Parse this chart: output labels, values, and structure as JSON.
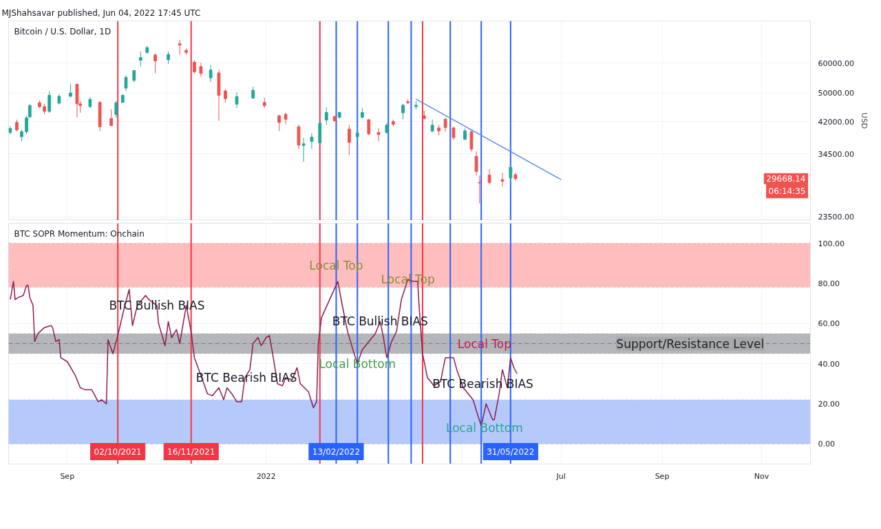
{
  "chart_data": [
    {
      "type": "candlestick",
      "subtitle": "MJShahsavar published, Jun 04, 2022 17:45 UTC",
      "title": "Bitcoin / U.S. Dollar, 1D",
      "ylabel": "USD",
      "log": true,
      "grid": true,
      "tick_labels": "y",
      "xlim": [
        "2021-07-27",
        "2022-12-01"
      ],
      "ylim": [
        23000,
        77500
      ],
      "xticks": [
        {
          "value": "2021-09-01",
          "label": null
        },
        {
          "value": "2021-11-01",
          "label": null
        },
        {
          "value": "2022-01-01",
          "label": null
        },
        {
          "value": "2022-03-01",
          "label": null
        },
        {
          "value": "2022-05-01",
          "label": null
        },
        {
          "value": "2022-07-01",
          "label": null
        },
        {
          "value": "2022-09-01",
          "label": null
        },
        {
          "value": "2022-11-01",
          "label": null
        }
      ],
      "yticks": [
        {
          "value": 23500,
          "label": "23500.00"
        },
        {
          "value": 34500,
          "label": "34500.00"
        },
        {
          "value": 42000,
          "label": "42000.00"
        },
        {
          "value": 50000,
          "label": "50000.00"
        },
        {
          "value": 60000,
          "label": "60000.00"
        }
      ],
      "x": [
        "2021-07-28",
        "2021-08-01",
        "2021-08-04",
        "2021-08-07",
        "2021-08-09",
        "2021-08-15",
        "2021-08-18",
        "2021-08-21",
        "2021-08-27",
        "2021-09-03",
        "2021-09-07",
        "2021-09-09",
        "2021-09-15",
        "2021-09-21",
        "2021-09-28",
        "2021-10-01",
        "2021-10-05",
        "2021-10-07",
        "2021-10-12",
        "2021-10-16",
        "2021-10-20",
        "2021-10-25",
        "2021-11-02",
        "2021-11-09",
        "2021-11-13",
        "2021-11-18",
        "2021-11-22",
        "2021-11-28",
        "2021-12-03",
        "2021-12-07",
        "2021-12-14",
        "2021-12-24",
        "2021-12-31",
        "2022-01-09",
        "2022-01-13",
        "2022-01-21",
        "2022-01-24",
        "2022-01-29",
        "2022-02-03",
        "2022-02-07",
        "2022-02-12",
        "2022-02-15",
        "2022-02-21",
        "2022-02-26",
        "2022-03-01",
        "2022-03-05",
        "2022-03-11",
        "2022-03-16",
        "2022-03-20",
        "2022-03-26",
        "2022-03-29",
        "2022-04-03",
        "2022-04-08",
        "2022-04-13",
        "2022-04-17",
        "2022-04-21",
        "2022-04-26",
        "2022-05-03",
        "2022-05-07",
        "2022-05-10",
        "2022-05-12",
        "2022-05-18",
        "2022-05-26",
        "2022-05-31",
        "2022-06-03"
      ],
      "ohlc": [
        [
          39300,
          40800,
          38800,
          40300
        ],
        [
          41800,
          42500,
          39600,
          39900
        ],
        [
          38300,
          39970,
          37240,
          39500
        ],
        [
          39500,
          43400,
          39000,
          43000
        ],
        [
          43200,
          46700,
          43000,
          46300
        ],
        [
          47100,
          47750,
          45600,
          46000
        ],
        [
          46000,
          46780,
          43970,
          44700
        ],
        [
          44700,
          50600,
          44300,
          49300
        ],
        [
          47000,
          49560,
          46590,
          49000
        ],
        [
          49000,
          52760,
          48700,
          50000
        ],
        [
          52700,
          52980,
          43060,
          46800
        ],
        [
          46800,
          47560,
          44330,
          46300
        ],
        [
          46000,
          48760,
          45640,
          48100
        ],
        [
          47200,
          47560,
          39640,
          40700
        ],
        [
          42800,
          45260,
          40800,
          41000
        ],
        [
          43800,
          47560,
          43060,
          47100
        ],
        [
          47200,
          49560,
          47170,
          49300
        ],
        [
          51500,
          55680,
          50610,
          55000
        ],
        [
          54000,
          57560,
          53400,
          57300
        ],
        [
          61000,
          64380,
          58770,
          62000
        ],
        [
          64000,
          66560,
          63590,
          65900
        ],
        [
          63000,
          63590,
          56380,
          60800
        ],
        [
          61200,
          64380,
          59750,
          63200
        ],
        [
          67500,
          69070,
          63060,
          66900
        ],
        [
          64800,
          65500,
          63060,
          64000
        ],
        [
          60300,
          61000,
          56380,
          56900
        ],
        [
          58700,
          60000,
          55220,
          56300
        ],
        [
          54800,
          59260,
          53420,
          57500
        ],
        [
          56500,
          57560,
          42200,
          49300
        ],
        [
          50600,
          51230,
          47170,
          48300
        ],
        [
          46700,
          50190,
          45640,
          48900
        ],
        [
          48500,
          51900,
          48150,
          50800
        ],
        [
          47200,
          48560,
          45640,
          46300
        ],
        [
          43500,
          43800,
          39640,
          41800
        ],
        [
          43900,
          44330,
          41300,
          42600
        ],
        [
          40700,
          41300,
          35570,
          36400
        ],
        [
          36300,
          38000,
          32880,
          36700
        ],
        [
          37200,
          39140,
          35570,
          38200
        ],
        [
          36900,
          41980,
          36470,
          41600
        ],
        [
          42400,
          45820,
          41140,
          44400
        ],
        [
          43300,
          43500,
          42000,
          42200
        ],
        [
          43100,
          44600,
          42800,
          44400
        ],
        [
          40100,
          41140,
          34270,
          37000
        ],
        [
          38300,
          39640,
          37080,
          39200
        ],
        [
          43100,
          45640,
          42900,
          44400
        ],
        [
          42500,
          42530,
          38640,
          39000
        ],
        [
          39300,
          40300,
          37240,
          38800
        ],
        [
          39300,
          41650,
          39000,
          41100
        ],
        [
          42000,
          42530,
          40800,
          41300
        ],
        [
          44300,
          46780,
          42530,
          46400
        ],
        [
          47400,
          48150,
          46780,
          47100
        ],
        [
          46000,
          47560,
          45260,
          46400
        ],
        [
          43500,
          44900,
          42530,
          42800
        ],
        [
          39600,
          42530,
          39480,
          41100
        ],
        [
          40400,
          41140,
          38640,
          39700
        ],
        [
          42600,
          43060,
          39480,
          40500
        ],
        [
          40400,
          40800,
          37550,
          38100
        ],
        [
          37700,
          40300,
          37550,
          39700
        ],
        [
          39500,
          39970,
          34990,
          35500
        ],
        [
          34000,
          34990,
          30260,
          31000
        ],
        [
          29000,
          30260,
          25520,
          28900
        ],
        [
          30300,
          31420,
          28660,
          29000
        ],
        [
          29500,
          30770,
          28300,
          29200
        ],
        [
          29800,
          32200,
          29280,
          31800
        ],
        [
          30400,
          30770,
          29280,
          29668.14
        ]
      ],
      "colors": [
        "#26a69a",
        "#ef5350",
        "#26a69a",
        "#26a69a",
        "#26a69a",
        "#ef5350",
        "#ef5350",
        "#26a69a",
        "#26a69a",
        "#26a69a",
        "#ef5350",
        "#ef5350",
        "#26a69a",
        "#ef5350",
        "#ef5350",
        "#26a69a",
        "#26a69a",
        "#26a69a",
        "#26a69a",
        "#26a69a",
        "#26a69a",
        "#ef5350",
        "#26a69a",
        "#ef5350",
        "#ef5350",
        "#ef5350",
        "#ef5350",
        "#26a69a",
        "#ef5350",
        "#ef5350",
        "#26a69a",
        "#26a69a",
        "#ef5350",
        "#ef5350",
        "#ef5350",
        "#ef5350",
        "#26a69a",
        "#26a69a",
        "#26a69a",
        "#26a69a",
        "#ef5350",
        "#26a69a",
        "#ef5350",
        "#26a69a",
        "#26a69a",
        "#ef5350",
        "#ef5350",
        "#26a69a",
        "#ef5350",
        "#26a69a",
        "#ef5350",
        "#26a69a",
        "#ef5350",
        "#26a69a",
        "#ef5350",
        "#ef5350",
        "#ef5350",
        "#26a69a",
        "#ef5350",
        "#ef5350",
        "#ef5350",
        "#ef5350",
        "#ef5350",
        "#26a69a",
        "#ef5350"
      ],
      "series": [
        {
          "type": "line",
          "color": "#5b8def",
          "x": [
            "2022-04-03",
            "2022-07-01"
          ],
          "values": [
            48150,
            29500
          ]
        }
      ],
      "ref_lines": [
        {
          "axis": "x",
          "value": "2021-10-02",
          "color": "#f23645"
        },
        {
          "axis": "x",
          "value": "2021-11-16",
          "color": "#f23645"
        },
        {
          "axis": "x",
          "value": "2022-02-03",
          "color": "#f23645"
        },
        {
          "axis": "x",
          "value": "2022-02-13",
          "color": "#2962ff"
        },
        {
          "axis": "x",
          "value": "2022-02-26",
          "color": "#2962ff"
        },
        {
          "axis": "x",
          "value": "2022-03-17",
          "color": "#2962ff"
        },
        {
          "axis": "x",
          "value": "2022-03-31",
          "color": "#2962ff"
        },
        {
          "axis": "x",
          "value": "2022-04-07",
          "color": "#f23645"
        },
        {
          "axis": "x",
          "value": "2022-04-24",
          "color": "#2962ff"
        },
        {
          "axis": "x",
          "value": "2022-05-13",
          "color": "#2962ff"
        },
        {
          "axis": "x",
          "value": "2022-05-31",
          "color": "#2962ff"
        }
      ],
      "annotations": [
        "29668.14",
        "06:14:35"
      ]
    },
    {
      "type": "line",
      "title": "BTC SOPR Momentum: Onchain",
      "color": "#8b1a4f",
      "grid": true,
      "xlim": [
        "2021-07-27",
        "2022-12-01"
      ],
      "ylim": [
        -10,
        110
      ],
      "xticks": [
        {
          "value": "2021-09-01",
          "label": "Sep"
        },
        {
          "value": "2021-11-01",
          "label": null
        },
        {
          "value": "2022-01-01",
          "label": "2022"
        },
        {
          "value": "2022-03-01",
          "label": null
        },
        {
          "value": "2022-05-01",
          "label": null
        },
        {
          "value": "2022-07-01",
          "label": "Jul"
        },
        {
          "value": "2022-09-01",
          "label": "Sep"
        },
        {
          "value": "2022-11-01",
          "label": "Nov"
        }
      ],
      "yticks": [
        {
          "value": 0,
          "label": "0.00"
        },
        {
          "value": 20,
          "label": "20.00"
        },
        {
          "value": 40,
          "label": "40.00"
        },
        {
          "value": 60,
          "label": "60.00"
        },
        {
          "value": 80,
          "label": "80.00"
        },
        {
          "value": 100,
          "label": "100.00"
        }
      ],
      "x": [
        "2021-07-28",
        "2021-07-30",
        "2021-07-31",
        "2021-08-02",
        "2021-08-05",
        "2021-08-07",
        "2021-08-08",
        "2021-08-09",
        "2021-08-11",
        "2021-08-12",
        "2021-08-14",
        "2021-08-18",
        "2021-08-22",
        "2021-08-23",
        "2021-08-25",
        "2021-08-27",
        "2021-08-28",
        "2021-09-01",
        "2021-09-06",
        "2021-09-09",
        "2021-09-12",
        "2021-09-16",
        "2021-09-20",
        "2021-09-22",
        "2021-09-25",
        "2021-09-26",
        "2021-09-29",
        "2021-10-02",
        "2021-10-06",
        "2021-10-09",
        "2021-10-11",
        "2021-10-14",
        "2021-10-19",
        "2021-10-21",
        "2021-10-26",
        "2021-10-27",
        "2021-10-31",
        "2021-11-02",
        "2021-11-04",
        "2021-11-07",
        "2021-11-09",
        "2021-11-13",
        "2021-11-16",
        "2021-11-18",
        "2021-11-23",
        "2021-11-26",
        "2021-11-29",
        "2021-12-03",
        "2021-12-06",
        "2021-12-08",
        "2021-12-11",
        "2021-12-14",
        "2021-12-17",
        "2021-12-19",
        "2021-12-22",
        "2021-12-24",
        "2021-12-27",
        "2021-12-29",
        "2022-01-01",
        "2022-01-03",
        "2022-01-05",
        "2022-01-08",
        "2022-01-11",
        "2022-01-13",
        "2022-01-17",
        "2022-01-20",
        "2022-01-22",
        "2022-01-27",
        "2022-01-30",
        "2022-02-01",
        "2022-02-02",
        "2022-02-04",
        "2022-02-09",
        "2022-02-14",
        "2022-02-17",
        "2022-02-20",
        "2022-02-24",
        "2022-02-26",
        "2022-03-01",
        "2022-03-04",
        "2022-03-09",
        "2022-03-12",
        "2022-03-14",
        "2022-03-16",
        "2022-03-19",
        "2022-03-22",
        "2022-03-25",
        "2022-03-29",
        "2022-04-01",
        "2022-04-04",
        "2022-04-05",
        "2022-04-07",
        "2022-04-10",
        "2022-04-14",
        "2022-04-18",
        "2022-04-21",
        "2022-04-23",
        "2022-04-26",
        "2022-04-28",
        "2022-05-02",
        "2022-05-08",
        "2022-05-11",
        "2022-05-13",
        "2022-05-16",
        "2022-05-20",
        "2022-05-21",
        "2022-05-24",
        "2022-05-26",
        "2022-05-29",
        "2022-05-31",
        "2022-06-02",
        "2022-06-04"
      ],
      "values": [
        72,
        81,
        72,
        73,
        74,
        79,
        79,
        73,
        69,
        51,
        55,
        58,
        59,
        58,
        51,
        52,
        43,
        41,
        34,
        28,
        27,
        27,
        21,
        22,
        20,
        52,
        45,
        54,
        68,
        77,
        59,
        69,
        74,
        72,
        69,
        60,
        49,
        61,
        53,
        57,
        50,
        69,
        56,
        43,
        32,
        25,
        24,
        28,
        22,
        28,
        25,
        21,
        21,
        33,
        37,
        50,
        53,
        49,
        53,
        54,
        45,
        30,
        29,
        33,
        32,
        38,
        30,
        26,
        18,
        21,
        50,
        63,
        72,
        81,
        68,
        56,
        45,
        40,
        47,
        50,
        55,
        61,
        53,
        43,
        51,
        56,
        72,
        82,
        81,
        81,
        67,
        45,
        33,
        29,
        31,
        43,
        43,
        43,
        37,
        28,
        22,
        14,
        9,
        20,
        12,
        12,
        25,
        37,
        28,
        43,
        38,
        35
      ],
      "bands": [
        {
          "axis": "y",
          "from": 78,
          "to": 100,
          "color": "#ffb3b3"
        },
        {
          "axis": "y",
          "from": 45,
          "to": 55,
          "color": "#a8a9ad",
          "label": "Support/Resistance Level"
        },
        {
          "axis": "y",
          "from": 0,
          "to": 22,
          "color": "#a9bffa"
        }
      ],
      "ref_lines": [
        {
          "axis": "y",
          "value": 50,
          "color": "#787b86",
          "line_style": "dashed"
        },
        {
          "axis": "x",
          "value": "2021-10-02",
          "color": "#f23645",
          "label": "02/10/2021"
        },
        {
          "axis": "x",
          "value": "2021-11-16",
          "color": "#f23645",
          "label": "16/11/2021"
        },
        {
          "axis": "x",
          "value": "2022-02-03",
          "color": "#f23645"
        },
        {
          "axis": "x",
          "value": "2022-02-13",
          "color": "#2962ff",
          "label": "13/02/2022"
        },
        {
          "axis": "x",
          "value": "2022-02-26",
          "color": "#2962ff"
        },
        {
          "axis": "x",
          "value": "2022-03-17",
          "color": "#2962ff"
        },
        {
          "axis": "x",
          "value": "2022-03-31",
          "color": "#2962ff"
        },
        {
          "axis": "x",
          "value": "2022-04-07",
          "color": "#f23645"
        },
        {
          "axis": "x",
          "value": "2022-04-24",
          "color": "#2962ff"
        },
        {
          "axis": "x",
          "value": "2022-05-13",
          "color": "#2962ff"
        },
        {
          "axis": "x",
          "value": "2022-05-31",
          "color": "#2962ff",
          "label": "31/05/2022"
        }
      ],
      "annotations": [
        {
          "text": "BTC Bullish BIAS",
          "x": "2021-10-26",
          "y": 69
        },
        {
          "text": "BTC Bearish BIAS",
          "x": "2021-12-20",
          "y": 33
        },
        {
          "text": "BTC Bullish BIAS",
          "x": "2022-03-12",
          "y": 61
        },
        {
          "text": "Local Top",
          "x": "2022-02-13",
          "y": 89
        },
        {
          "text": "Local Top",
          "x": "2022-03-29",
          "y": 82
        },
        {
          "text": "Local Bottom",
          "x": "2022-02-26",
          "y": 40
        },
        {
          "text": "Local Top",
          "x": "2022-05-15",
          "y": 50
        },
        {
          "text": "BTC Bearish BIAS",
          "x": "2022-05-14",
          "y": 30
        },
        {
          "text": "Local Bottom",
          "x": "2022-05-15",
          "y": 8
        }
      ]
    }
  ]
}
